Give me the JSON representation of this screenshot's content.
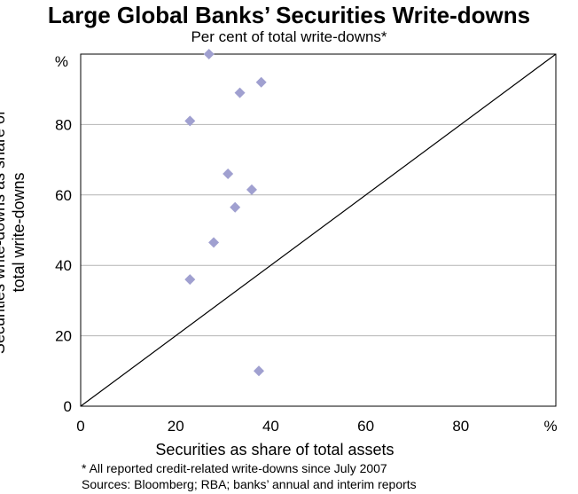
{
  "chart_data": {
    "type": "scatter",
    "title": "Large Global Banks’ Securities Write-downs",
    "subtitle": "Per cent of total write-downs*",
    "xlabel": "Securities as share of total assets",
    "ylabel_lines": [
      "Securities write-downs as share of",
      "total write-downs"
    ],
    "x_unit": "%",
    "y_unit": "%",
    "xlim": [
      0,
      100
    ],
    "ylim": [
      0,
      100
    ],
    "xticks": [
      "0",
      "20",
      "40",
      "60",
      "80"
    ],
    "yticks": [
      "0",
      "20",
      "40",
      "60",
      "80"
    ],
    "grid": true,
    "reference_line": {
      "from": [
        0,
        0
      ],
      "to": [
        100,
        100
      ]
    },
    "marker_color": "#a0a0d0",
    "points": [
      {
        "x": 27,
        "y": 100
      },
      {
        "x": 38,
        "y": 92
      },
      {
        "x": 33.5,
        "y": 89
      },
      {
        "x": 23,
        "y": 81
      },
      {
        "x": 31,
        "y": 66
      },
      {
        "x": 36,
        "y": 61.5
      },
      {
        "x": 32.5,
        "y": 56.5
      },
      {
        "x": 28,
        "y": 46.5
      },
      {
        "x": 23,
        "y": 36
      },
      {
        "x": 37.5,
        "y": 10
      }
    ]
  },
  "notes": {
    "footnote": "*   All reported credit-related write-downs since July 2007",
    "sources": "Sources: Bloomberg; RBA; banks’ annual and interim reports"
  }
}
